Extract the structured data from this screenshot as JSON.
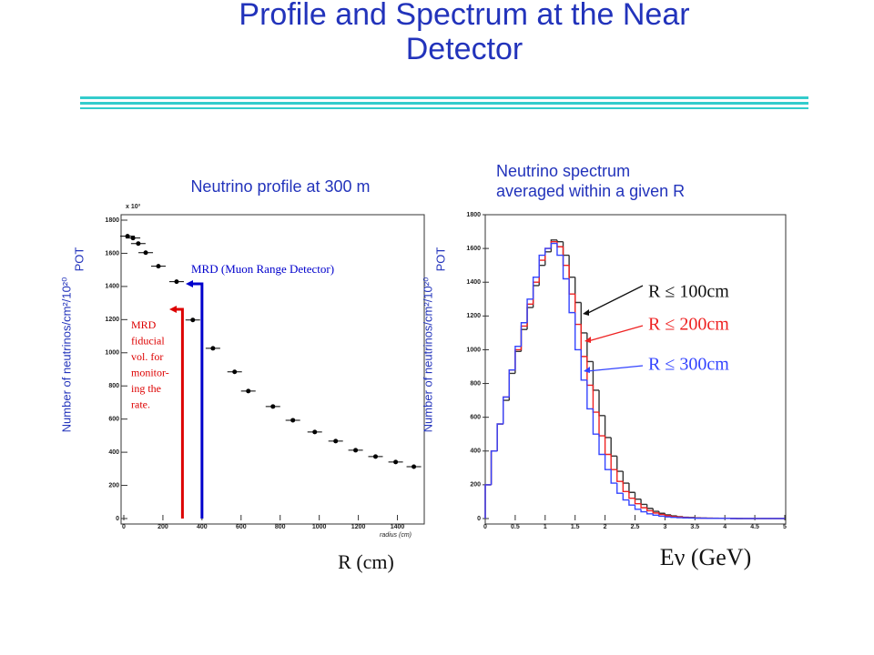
{
  "title": "Profile and Spectrum at the Near Detector",
  "chart_data": [
    {
      "type": "scatter",
      "title": "Neutrino profile at 300 m",
      "x_label": "R (cm)",
      "x_axis_note": "radius (cm)",
      "y_label": [
        "Number of neutrinos/cm²/10²⁰",
        "POT"
      ],
      "y_multiplier": "x 10³",
      "color": "#000000",
      "x": [
        19,
        47,
        74,
        112,
        177,
        270,
        353,
        456,
        567,
        637,
        763,
        865,
        977,
        1084,
        1186,
        1288,
        1391,
        1484
      ],
      "values": [
        1703,
        1692,
        1659,
        1604,
        1522,
        1429,
        1198,
        1027,
        885,
        769,
        676,
        593,
        522,
        467,
        412,
        374,
        341,
        313
      ],
      "xlim": [
        0,
        1500
      ],
      "ylim": [
        0,
        1800
      ],
      "xticks": [
        0,
        200,
        400,
        600,
        800,
        1000,
        1200,
        1400
      ],
      "yticks": [
        0,
        200,
        400,
        600,
        800,
        1000,
        1200,
        1400,
        1600,
        1800
      ],
      "markers": [
        {
          "x": 300,
          "color": "#dd0000"
        },
        {
          "x": 400,
          "color": "#0000cc"
        }
      ],
      "annotations": [
        {
          "lines": [
            "MRD (Muon Range Detector)"
          ],
          "color": "#0000cc"
        },
        {
          "lines": [
            "MRD",
            "fiducial",
            "vol. for",
            "monitor-",
            "ing the",
            "rate."
          ],
          "color": "#dd0000"
        }
      ]
    },
    {
      "type": "histogram",
      "title": [
        "Neutrino spectrum",
        "averaged within a given R"
      ],
      "x_label": "Eν (GeV)",
      "y_label": [
        "Number of neutrinos/cm²/10²⁰",
        "POT"
      ],
      "bins": [
        0,
        0.1,
        0.2,
        0.3,
        0.4,
        0.5,
        0.6,
        0.7,
        0.8,
        0.9,
        1,
        1.1,
        1.2,
        1.3,
        1.4,
        1.5,
        1.6,
        1.7,
        1.8,
        1.9,
        2,
        2.1,
        2.2,
        2.3,
        2.4,
        2.5,
        2.6,
        2.7,
        2.8,
        2.9,
        3,
        3.1,
        3.2,
        3.3,
        3.4,
        3.5,
        3.6,
        3.7,
        3.8,
        3.9,
        4,
        4.1,
        4.2,
        4.3,
        4.4,
        4.5,
        4.6,
        4.7,
        4.8,
        4.9,
        5
      ],
      "series": [
        {
          "name": "R ≤ 100cm",
          "color": "#333333",
          "values": [
            200,
            400,
            560,
            700,
            860,
            990,
            1120,
            1250,
            1380,
            1500,
            1580,
            1650,
            1640,
            1560,
            1430,
            1280,
            1100,
            930,
            760,
            610,
            480,
            370,
            280,
            210,
            155,
            115,
            84,
            60,
            43,
            31,
            22,
            16,
            11,
            8,
            6,
            4,
            3,
            2,
            2,
            1,
            1,
            1,
            0,
            0,
            0,
            0,
            0,
            0,
            0,
            0
          ]
        },
        {
          "name": "R ≤ 200cm",
          "color": "#ee2222",
          "values": [
            200,
            400,
            560,
            720,
            880,
            1000,
            1140,
            1270,
            1400,
            1530,
            1600,
            1640,
            1610,
            1500,
            1330,
            1150,
            960,
            790,
            630,
            490,
            380,
            290,
            220,
            160,
            120,
            88,
            64,
            46,
            33,
            24,
            17,
            12,
            9,
            6,
            4,
            3,
            2,
            2,
            1,
            1,
            1,
            0,
            0,
            0,
            0,
            0,
            0,
            0,
            0,
            0
          ]
        },
        {
          "name": "R ≤ 300cm",
          "color": "#3344ff",
          "values": [
            200,
            400,
            560,
            720,
            880,
            1020,
            1160,
            1300,
            1430,
            1560,
            1600,
            1630,
            1560,
            1420,
            1220,
            1000,
            820,
            650,
            500,
            380,
            290,
            210,
            150,
            110,
            80,
            55,
            40,
            28,
            20,
            14,
            10,
            7,
            5,
            4,
            3,
            2,
            2,
            1,
            1,
            1,
            1,
            0,
            0,
            0,
            0,
            0,
            0,
            0,
            0,
            0
          ]
        }
      ],
      "xlim": [
        0,
        5
      ],
      "ylim": [
        0,
        1800
      ],
      "xticks": [
        0,
        0.5,
        1,
        1.5,
        2,
        2.5,
        3,
        3.5,
        4,
        4.5,
        5
      ],
      "yticks": [
        0,
        200,
        400,
        600,
        800,
        1000,
        1200,
        1400,
        1600,
        1800
      ]
    }
  ]
}
